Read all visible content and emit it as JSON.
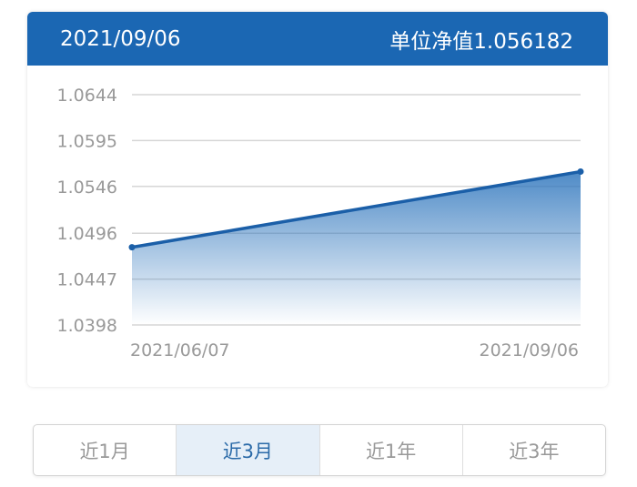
{
  "header": {
    "date": "2021/09/06",
    "nav_label": "单位净值1.056182"
  },
  "chart_data": {
    "type": "area",
    "x": [
      "2021/06/07",
      "2021/09/06"
    ],
    "values": [
      1.0481,
      1.056182
    ],
    "ylim": [
      1.0398,
      1.0644
    ],
    "yticks": [
      "1.0644",
      "1.0595",
      "1.0546",
      "1.0496",
      "1.0447",
      "1.0398"
    ],
    "xticks": [
      "2021/06/07",
      "2021/09/06"
    ],
    "grid": true,
    "line_color": "#1b5fa8",
    "fill_color": "#3f86c8"
  },
  "tabs": [
    {
      "label": "近1月",
      "active": false
    },
    {
      "label": "近3月",
      "active": true
    },
    {
      "label": "近1年",
      "active": false
    },
    {
      "label": "近3年",
      "active": false
    }
  ]
}
